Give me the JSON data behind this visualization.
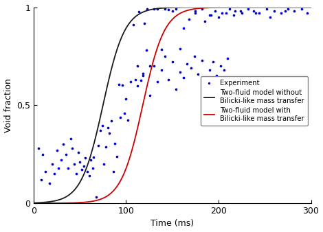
{
  "title": "",
  "xlabel": "Time (ms)",
  "ylabel": "Void fraction",
  "xlim": [
    0,
    300
  ],
  "ylim": [
    0,
    1
  ],
  "xticks": [
    0,
    100,
    200,
    300
  ],
  "yticks": [
    0,
    0.5,
    1
  ],
  "ytick_labels": [
    "0",
    "0,5",
    "1"
  ],
  "black_curve_color": "#1a1a1a",
  "red_curve_color": "#cc0000",
  "dot_color": "#0000cc",
  "legend_labels": [
    "Experiment",
    "Two-fluid model without\nBilicki-like mass transfer",
    "Two-fluid model with\nBilicki-like mass transfer"
  ],
  "background_color": "#ffffff",
  "axis_font_size": 9,
  "label_font_size": 9,
  "black_t0": 75,
  "black_k": 0.085,
  "red_t0": 118,
  "red_k": 0.085,
  "linewidth": 1.3
}
